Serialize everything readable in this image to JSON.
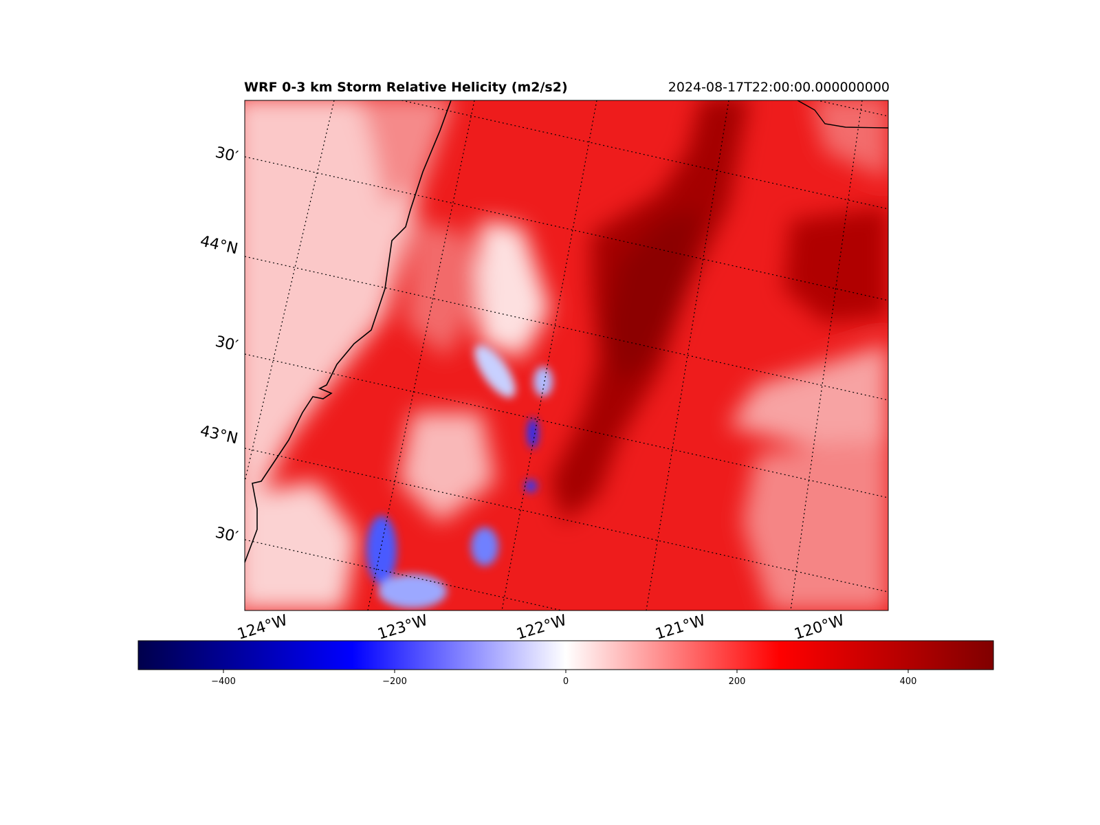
{
  "map": {
    "title": "WRF 0-3 km Storm Relative Helicity (m2/s2)",
    "timestamp": "2024-08-17T22:00:00.000000000",
    "lat_labels": [
      "30′",
      "44°N",
      "30′",
      "43°N",
      "30′"
    ],
    "lon_labels": [
      "124°W",
      "123°W",
      "122°W",
      "121°W",
      "120°W"
    ],
    "colorbar": {
      "colormap": "seismic",
      "range": [
        -500,
        500
      ],
      "ticks": [
        "−400",
        "−200",
        "0",
        "200",
        "400"
      ],
      "colors": [
        "#00004c",
        "#0000ff",
        "#ffffff",
        "#ff0000",
        "#800000"
      ]
    }
  }
}
